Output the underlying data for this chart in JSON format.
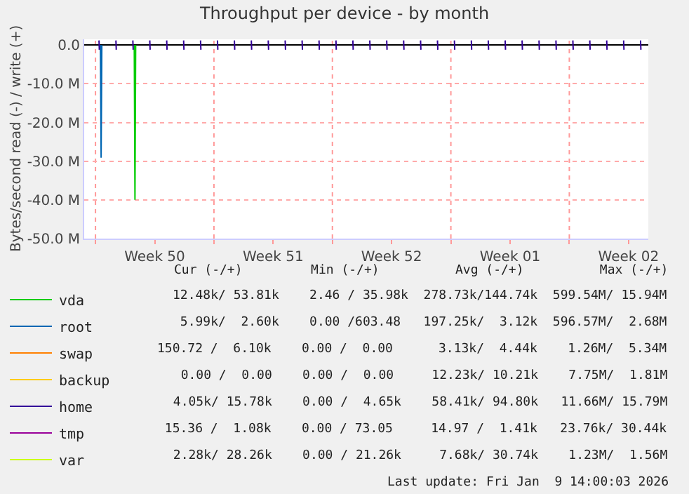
{
  "chart_data": {
    "type": "line",
    "title": "Throughput per device - by month",
    "ylabel": "Bytes/second read (-) / write (+)",
    "xlim": [
      "2025-12-07T08:00",
      "2026-01-09T16:00"
    ],
    "xticks": [
      {
        "value": "2025-12-08T00:00",
        "label": null
      },
      {
        "value": "2025-12-11T12:00",
        "label": "Week 50"
      },
      {
        "value": "2025-12-15T00:00",
        "label": null
      },
      {
        "value": "2025-12-18T12:00",
        "label": "Week 51"
      },
      {
        "value": "2025-12-22T00:00",
        "label": null
      },
      {
        "value": "2025-12-25T12:00",
        "label": "Week 52"
      },
      {
        "value": "2025-12-29T00:00",
        "label": null
      },
      {
        "value": "2026-01-01T12:00",
        "label": "Week 01"
      },
      {
        "value": "2026-01-05T00:00",
        "label": null
      },
      {
        "value": "2026-01-08T12:00",
        "label": "Week 02"
      }
    ],
    "ylim": [
      -50,
      1.5
    ],
    "yticks": [
      {
        "value": -50,
        "label": "-50.0 M"
      },
      {
        "value": -40,
        "label": "-40.0 M"
      },
      {
        "value": -30,
        "label": "-30.0 M"
      },
      {
        "value": -20,
        "label": "-20.0 M"
      },
      {
        "value": -10,
        "label": "-10.0 M"
      },
      {
        "value": 0,
        "label": "0.0"
      }
    ],
    "grid": true,
    "legend": "bottom left",
    "marker": "none",
    "line_style": "solid",
    "series": [
      {
        "name": "vda",
        "color": "#00cc00",
        "x": [
          "2025-12-10T07:00",
          "2025-12-10T08:00",
          "2025-12-10T09:00"
        ],
        "values": [
          0,
          -40.0,
          0
        ]
      },
      {
        "name": "root",
        "color": "#0066b3",
        "x": [
          "2025-12-08T07:00",
          "2025-12-08T08:00",
          "2025-12-08T09:00"
        ],
        "values": [
          0,
          -29.1,
          0
        ]
      },
      {
        "name": "swap",
        "color": "#ff8000"
      },
      {
        "name": "backup",
        "color": "#ffcc00"
      },
      {
        "name": "home",
        "color": "#330099",
        "x": [
          "2025-12-08T05:00",
          "2025-12-08T05:30",
          "2025-12-08T06:00",
          "2025-12-09T05:00",
          "2025-12-09T05:30",
          "2025-12-09T06:00",
          "2025-12-10T05:00",
          "2025-12-10T05:30",
          "2025-12-10T06:00",
          "2025-12-11T05:00",
          "2025-12-11T05:30",
          "2025-12-11T06:00",
          "2025-12-12T05:00",
          "2025-12-12T05:30",
          "2025-12-12T06:00",
          "2025-12-13T05:00",
          "2025-12-13T05:30",
          "2025-12-13T06:00",
          "2025-12-14T05:00",
          "2025-12-14T05:30",
          "2025-12-14T06:00",
          "2025-12-15T05:00",
          "2025-12-15T05:30",
          "2025-12-15T06:00",
          "2025-12-16T05:00",
          "2025-12-16T05:30",
          "2025-12-16T06:00",
          "2025-12-17T05:00",
          "2025-12-17T05:30",
          "2025-12-17T06:00",
          "2025-12-18T05:00",
          "2025-12-18T05:30",
          "2025-12-18T06:00",
          "2025-12-19T05:00",
          "2025-12-19T05:30",
          "2025-12-19T06:00",
          "2025-12-20T05:00",
          "2025-12-20T05:30",
          "2025-12-20T06:00",
          "2025-12-21T05:00",
          "2025-12-21T05:30",
          "2025-12-21T06:00",
          "2025-12-22T05:00",
          "2025-12-22T05:30",
          "2025-12-22T06:00",
          "2025-12-23T05:00",
          "2025-12-23T05:30",
          "2025-12-23T06:00",
          "2025-12-24T05:00",
          "2025-12-24T05:30",
          "2025-12-24T06:00",
          "2025-12-25T05:00",
          "2025-12-25T05:30",
          "2025-12-25T06:00",
          "2025-12-26T05:00",
          "2025-12-26T05:30",
          "2025-12-26T06:00",
          "2025-12-27T05:00",
          "2025-12-27T05:30",
          "2025-12-27T06:00",
          "2025-12-28T05:00",
          "2025-12-28T05:30",
          "2025-12-28T06:00",
          "2025-12-29T05:00",
          "2025-12-29T05:30",
          "2025-12-29T06:00",
          "2025-12-30T05:00",
          "2025-12-30T05:30",
          "2025-12-30T06:00",
          "2025-12-31T05:00",
          "2025-12-31T05:30",
          "2025-12-31T06:00",
          "2026-01-01T05:00",
          "2026-01-01T05:30",
          "2026-01-01T06:00",
          "2026-01-02T05:00",
          "2026-01-02T05:30",
          "2026-01-02T06:00",
          "2026-01-03T05:00",
          "2026-01-03T05:30",
          "2026-01-03T06:00",
          "2026-01-04T05:00",
          "2026-01-04T05:30",
          "2026-01-04T06:00",
          "2026-01-05T05:00",
          "2026-01-05T05:30",
          "2026-01-05T06:00",
          "2026-01-06T05:00",
          "2026-01-06T05:30",
          "2026-01-06T06:00",
          "2026-01-07T05:00",
          "2026-01-07T05:30",
          "2026-01-07T06:00",
          "2026-01-08T05:00",
          "2026-01-08T05:30",
          "2026-01-08T06:00",
          "2026-01-09T05:00",
          "2026-01-09T05:30"
        ],
        "values": [
          1.2,
          -1.2,
          null,
          1.2,
          -1.2,
          null,
          1.2,
          -1.2,
          null,
          1.2,
          -1.2,
          null,
          1.2,
          -1.2,
          null,
          1.2,
          -1.2,
          null,
          1.2,
          -1.2,
          null,
          1.2,
          -1.2,
          null,
          1.2,
          -1.2,
          null,
          1.2,
          -1.2,
          null,
          1.2,
          -1.2,
          null,
          1.2,
          -1.2,
          null,
          1.2,
          -1.2,
          null,
          1.2,
          -1.2,
          null,
          1.2,
          -1.2,
          null,
          1.2,
          -1.2,
          null,
          1.2,
          -1.2,
          null,
          1.2,
          -1.2,
          null,
          1.2,
          -1.2,
          null,
          1.2,
          -1.2,
          null,
          1.2,
          -1.2,
          null,
          1.2,
          -1.2,
          null,
          1.2,
          -1.2,
          null,
          1.2,
          -1.2,
          null,
          1.2,
          -1.2,
          null,
          1.2,
          -1.2,
          null,
          1.2,
          -1.2,
          null,
          1.2,
          -1.2,
          null,
          1.2,
          -1.2,
          null,
          1.2,
          -1.2,
          null,
          1.2,
          -1.2,
          null,
          1.2,
          -1.2,
          null,
          1.2,
          -1.2
        ]
      },
      {
        "name": "tmp",
        "color": "#990099"
      },
      {
        "name": "var",
        "color": "#ccff00"
      }
    ],
    "annotations": [
      "Cur (-/+)         Min (-/+)          Avg (-/+)          Max (-/+)",
      "12.48k/ 53.81k    2.46 / 35.98k  278.73k/144.74k  599.54M/ 15.94M",
      " 5.99k/  2.60k    0.00 /603.48   197.25k/  3.12k  596.57M/  2.68M",
      "150.72 /  6.10k    0.00 /  0.00      3.13k/  4.44k    1.26M/  5.34M",
      "  0.00 /  0.00    0.00 /  0.00     12.23k/ 10.21k    7.75M/  1.81M",
      " 4.05k/ 15.78k    0.00 /  4.65k    58.41k/ 94.80k   11.66M/ 15.79M",
      " 15.36 /  1.08k    0.00 / 73.05     14.97 /  1.41k   23.76k/ 30.44k",
      " 2.28k/ 28.26k    0.00 / 21.26k     7.68k/ 30.74k    1.23M/  1.56M",
      "Last update: Fri Jan  9 14:00:03 2026"
    ]
  }
}
